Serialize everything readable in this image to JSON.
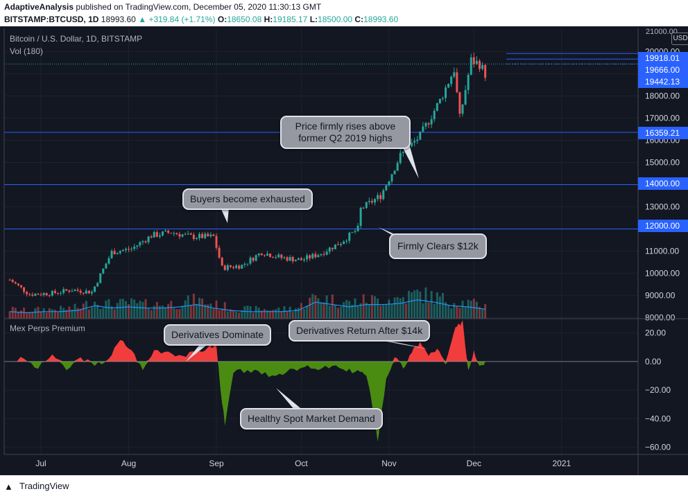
{
  "header": {
    "author": "AdaptiveAnalysis",
    "published": "published on TradingView.com, December 05, 2020 11:30:13 GMT",
    "symbol": "BITSTAMP:BTCUSD, 1D",
    "last": "18993.60",
    "change": "+319.84 (+1.71%)",
    "o_label": "O:",
    "o_value": "18650.08",
    "h_label": "H:",
    "h_value": "19185.17",
    "l_label": "L:",
    "l_value": "18500.00",
    "c_label": "C:",
    "c_value": "18993.60",
    "up_arrow": "triangle-up-icon"
  },
  "main_pane": {
    "title": "Bitcoin / U.S. Dollar, 1D, BITSTAMP",
    "volume_label": "Vol (180)",
    "currency": "USD",
    "top_tick": "21000.00"
  },
  "sub_pane": {
    "title": "Mex Perps Premium"
  },
  "callouts": {
    "price_rises": "Price firmly rises above former Q2 2019 highs",
    "buyers_exhausted": "Buyers become exhausted",
    "firmly_clears": "Firmly Clears $12k",
    "derivatives_dominate": "Derivatives Dominate",
    "derivatives_return": "Derivatives Return After $14k",
    "healthy_spot": "Healthy Spot Market Demand"
  },
  "price_labels": [
    "19918.01",
    "19666.00",
    "19442.13",
    "16359.21",
    "14000.00",
    "12000.00"
  ],
  "footer": {
    "brand": "TradingView",
    "logo_icon": "tradingview-logo-icon"
  },
  "colors": {
    "background": "#131722",
    "up": "#26a69a",
    "down": "#ef5350",
    "premium_positive": "#f23d3d",
    "premium_negative": "#4a8c12",
    "level_line": "#2962ff",
    "volume_ma": "#2196f3"
  },
  "chart_data": [
    {
      "type": "candlestick",
      "title": "Bitcoin / U.S. Dollar, 1D, BITSTAMP",
      "x_ticks": [
        "Jul",
        "Aug",
        "Sep",
        "Oct",
        "Nov",
        "Dec",
        "2021"
      ],
      "y_ticks": [
        8000,
        9000,
        10000,
        11000,
        12000,
        13000,
        14000,
        15000,
        16000,
        17000,
        18000,
        19000,
        20000
      ],
      "y_tick_labels": [
        "8000.00",
        "9000.00",
        "10000.00",
        "11000.00",
        "12000.00",
        "13000.00",
        "14000.00",
        "15000.00",
        "16000.00",
        "17000.00",
        "18000.00",
        "19000.00",
        "20000.00"
      ],
      "ylim": [
        7950,
        21050
      ],
      "horizontal_levels": [
        12000,
        14000,
        16359.21,
        19442.13,
        19666,
        19918.01
      ],
      "series": [
        {
          "name": "Price",
          "close_points": [
            [
              "2020-06-20",
              9700
            ],
            [
              "2020-06-27",
              9050
            ],
            [
              "2020-07-05",
              9100
            ],
            [
              "2020-07-12",
              9250
            ],
            [
              "2020-07-19",
              9150
            ],
            [
              "2020-07-26",
              10950
            ],
            [
              "2020-08-02",
              11100
            ],
            [
              "2020-08-09",
              11700
            ],
            [
              "2020-08-16",
              11850
            ],
            [
              "2020-08-23",
              11650
            ],
            [
              "2020-08-31",
              11650
            ],
            [
              "2020-09-03",
              10250
            ],
            [
              "2020-09-10",
              10350
            ],
            [
              "2020-09-17",
              10950
            ],
            [
              "2020-09-24",
              10700
            ],
            [
              "2020-10-01",
              10600
            ],
            [
              "2020-10-08",
              10900
            ],
            [
              "2020-10-15",
              11400
            ],
            [
              "2020-10-21",
              12000
            ],
            [
              "2020-10-22",
              12900
            ],
            [
              "2020-10-29",
              13500
            ],
            [
              "2020-11-05",
              15300
            ],
            [
              "2020-11-12",
              16200
            ],
            [
              "2020-11-19",
              17800
            ],
            [
              "2020-11-24",
              19200
            ],
            [
              "2020-11-26",
              17000
            ],
            [
              "2020-11-30",
              19600
            ],
            [
              "2020-12-03",
              19450
            ],
            [
              "2020-12-05",
              18993.6
            ]
          ]
        },
        {
          "name": "Vol (180)",
          "values_relative": [
            0.3,
            0.25,
            0.3,
            0.3,
            0.35,
            0.55,
            0.45,
            0.5,
            0.45,
            0.45,
            0.5,
            0.6,
            0.45,
            0.35,
            0.3,
            0.3,
            0.3,
            0.35,
            0.7,
            0.6,
            0.5,
            0.6,
            0.6,
            0.65,
            0.8,
            0.7,
            0.55,
            0.5,
            0.4
          ]
        }
      ]
    },
    {
      "type": "area",
      "title": "Mex Perps Premium",
      "y_ticks": [
        20,
        0,
        -20,
        -40,
        -60
      ],
      "y_tick_labels": [
        "20.00",
        "0.00",
        "−20.00",
        "−40.00",
        "−60.00"
      ],
      "ylim": [
        -65,
        30
      ],
      "series": [
        {
          "name": "Mex Perps Premium",
          "points": [
            [
              "2020-06-20",
              0
            ],
            [
              "2020-06-25",
              2
            ],
            [
              "2020-06-30",
              -5
            ],
            [
              "2020-07-05",
              5
            ],
            [
              "2020-07-10",
              -6
            ],
            [
              "2020-07-15",
              3
            ],
            [
              "2020-07-20",
              -3
            ],
            [
              "2020-07-25",
              2
            ],
            [
              "2020-07-29",
              15
            ],
            [
              "2020-08-02",
              8
            ],
            [
              "2020-08-06",
              -6
            ],
            [
              "2020-08-10",
              8
            ],
            [
              "2020-08-15",
              7
            ],
            [
              "2020-08-20",
              4
            ],
            [
              "2020-08-25",
              6
            ],
            [
              "2020-08-29",
              10
            ],
            [
              "2020-09-01",
              11
            ],
            [
              "2020-09-02",
              -10
            ],
            [
              "2020-09-04",
              -45
            ],
            [
              "2020-09-07",
              -8
            ],
            [
              "2020-09-12",
              -6
            ],
            [
              "2020-09-17",
              -9
            ],
            [
              "2020-09-22",
              -10
            ],
            [
              "2020-09-27",
              -5
            ],
            [
              "2020-10-02",
              -4
            ],
            [
              "2020-10-07",
              -6
            ],
            [
              "2020-10-12",
              -3
            ],
            [
              "2020-10-17",
              -7
            ],
            [
              "2020-10-21",
              -6
            ],
            [
              "2020-10-24",
              -10
            ],
            [
              "2020-10-26",
              -30
            ],
            [
              "2020-10-28",
              -56
            ],
            [
              "2020-10-31",
              -12
            ],
            [
              "2020-11-03",
              3
            ],
            [
              "2020-11-06",
              -5
            ],
            [
              "2020-11-09",
              6
            ],
            [
              "2020-11-12",
              14
            ],
            [
              "2020-11-15",
              4
            ],
            [
              "2020-11-18",
              9
            ],
            [
              "2020-11-21",
              -2
            ],
            [
              "2020-11-24",
              21
            ],
            [
              "2020-11-26",
              26
            ],
            [
              "2020-11-27",
              29
            ],
            [
              "2020-11-29",
              -6
            ],
            [
              "2020-12-01",
              8
            ],
            [
              "2020-12-03",
              -3
            ],
            [
              "2020-12-05",
              0
            ]
          ]
        }
      ]
    }
  ]
}
